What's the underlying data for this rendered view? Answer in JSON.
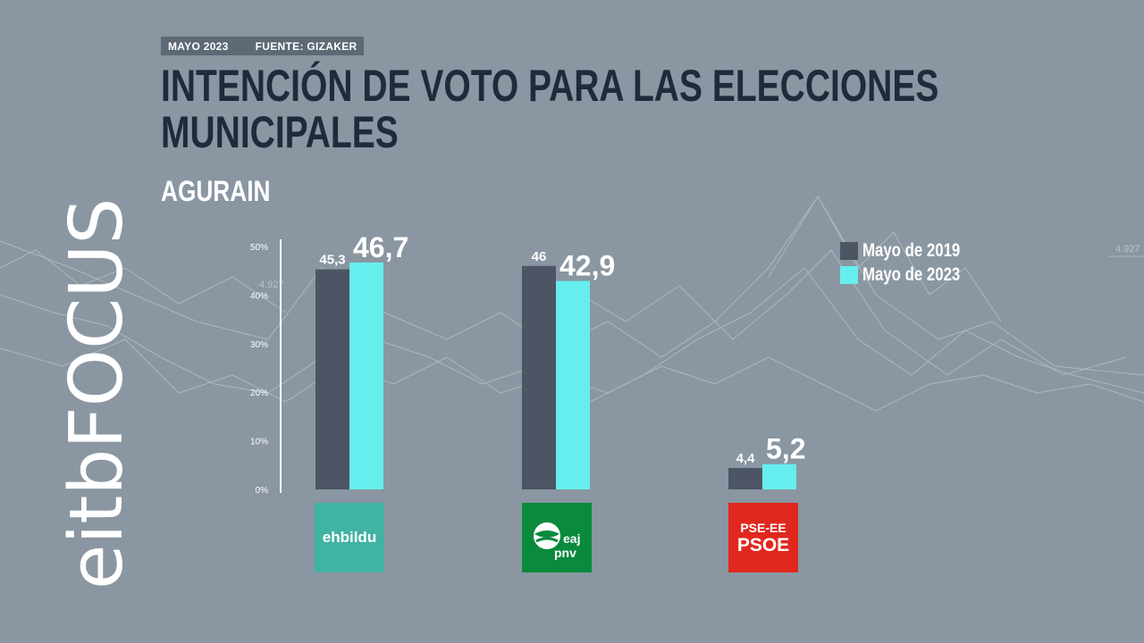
{
  "header": {
    "date": "MAYO 2023",
    "source": "FUENTE: GIZAKER",
    "title_line1": "INTENCIÓN DE VOTO PARA LAS ELECCIONES",
    "title_line2": "MUNICIPALES",
    "subtitle": "AGURAIN"
  },
  "brand": {
    "name": "eitbFOCUS",
    "icon": "eitb-focus-logo"
  },
  "colors": {
    "background": "#8a96a1",
    "series_2019": "#4d5564",
    "series_2023": "#66eeee",
    "title": "#1d2b3a"
  },
  "logos": {
    "bildu": {
      "text": "ehbildu",
      "color": "#41b3a3"
    },
    "pnv": {
      "text_top": "eaj",
      "text_bottom": "pnv",
      "color": "#0a8a3d"
    },
    "psoe": {
      "text_top": "PSE-EE",
      "text_bottom": "PSOE",
      "color": "#e0281e"
    }
  },
  "chart_data": {
    "type": "bar",
    "categories": [
      "ehbildu",
      "eaj pnv",
      "PSE-EE PSOE"
    ],
    "series": [
      {
        "name": "Mayo de 2019",
        "values": [
          45.3,
          46,
          4.4
        ],
        "labels": [
          "45,3",
          "46",
          "4,4"
        ]
      },
      {
        "name": "Mayo de 2023",
        "values": [
          46.7,
          42.9,
          5.2
        ],
        "labels": [
          "46,7",
          "42,9",
          "5,2"
        ]
      }
    ],
    "ylim": [
      0,
      50
    ],
    "yticks": [
      0,
      10,
      20,
      30,
      40,
      50
    ],
    "ytick_labels": [
      "0%",
      "10%",
      "20%",
      "30%",
      "40%",
      "50%"
    ],
    "legend_position": "top-right"
  }
}
